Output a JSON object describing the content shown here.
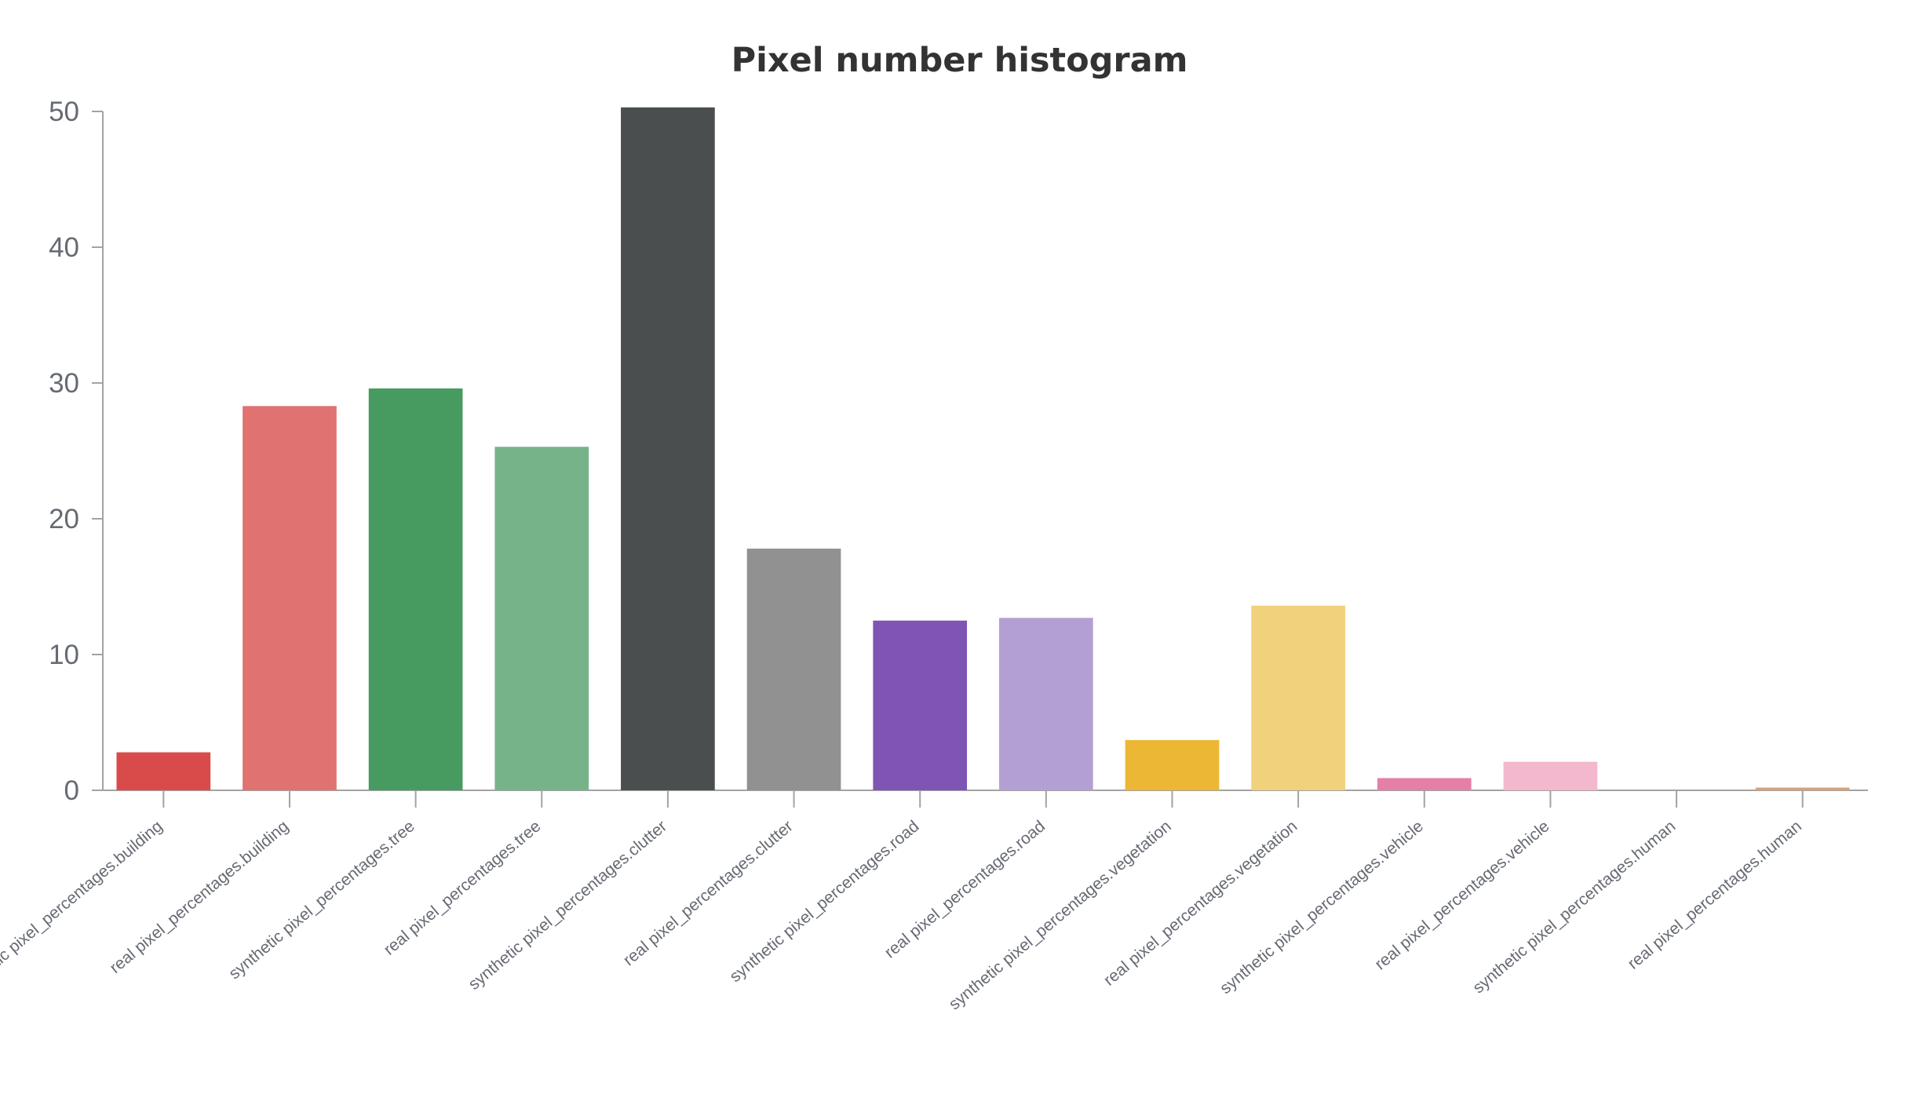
{
  "chart_data": {
    "type": "bar",
    "title": "Pixel number histogram",
    "xlabel": "",
    "ylabel": "",
    "ylim": [
      0,
      50
    ],
    "yticks": [
      0,
      10,
      20,
      30,
      40,
      50
    ],
    "grid": false,
    "categories": [
      "synthetic pixel_percentages.building",
      "real pixel_percentages.building",
      "synthetic pixel_percentages.tree",
      "real pixel_percentages.tree",
      "synthetic pixel_percentages.clutter",
      "real pixel_percentages.clutter",
      "synthetic pixel_percentages.road",
      "real pixel_percentages.road",
      "synthetic pixel_percentages.vegetation",
      "real pixel_percentages.vegetation",
      "synthetic pixel_percentages.vehicle",
      "real pixel_percentages.vehicle",
      "synthetic pixel_percentages.human",
      "real pixel_percentages.human"
    ],
    "values": [
      2.8,
      28.3,
      29.6,
      25.3,
      50.3,
      17.8,
      12.5,
      12.7,
      3.7,
      13.6,
      0.9,
      2.1,
      0.0,
      0.2
    ],
    "colors": [
      "#d94b4b",
      "#e07271",
      "#489b60",
      "#77b388",
      "#4a4e4f",
      "#919191",
      "#7f55b4",
      "#b49fd5",
      "#ebb734",
      "#f2d17c",
      "#e47fa6",
      "#f3b8cd",
      "#c9c9c9",
      "#d6a27a"
    ],
    "axis_color": "#a3a3a3",
    "label_color": "#666a73"
  }
}
